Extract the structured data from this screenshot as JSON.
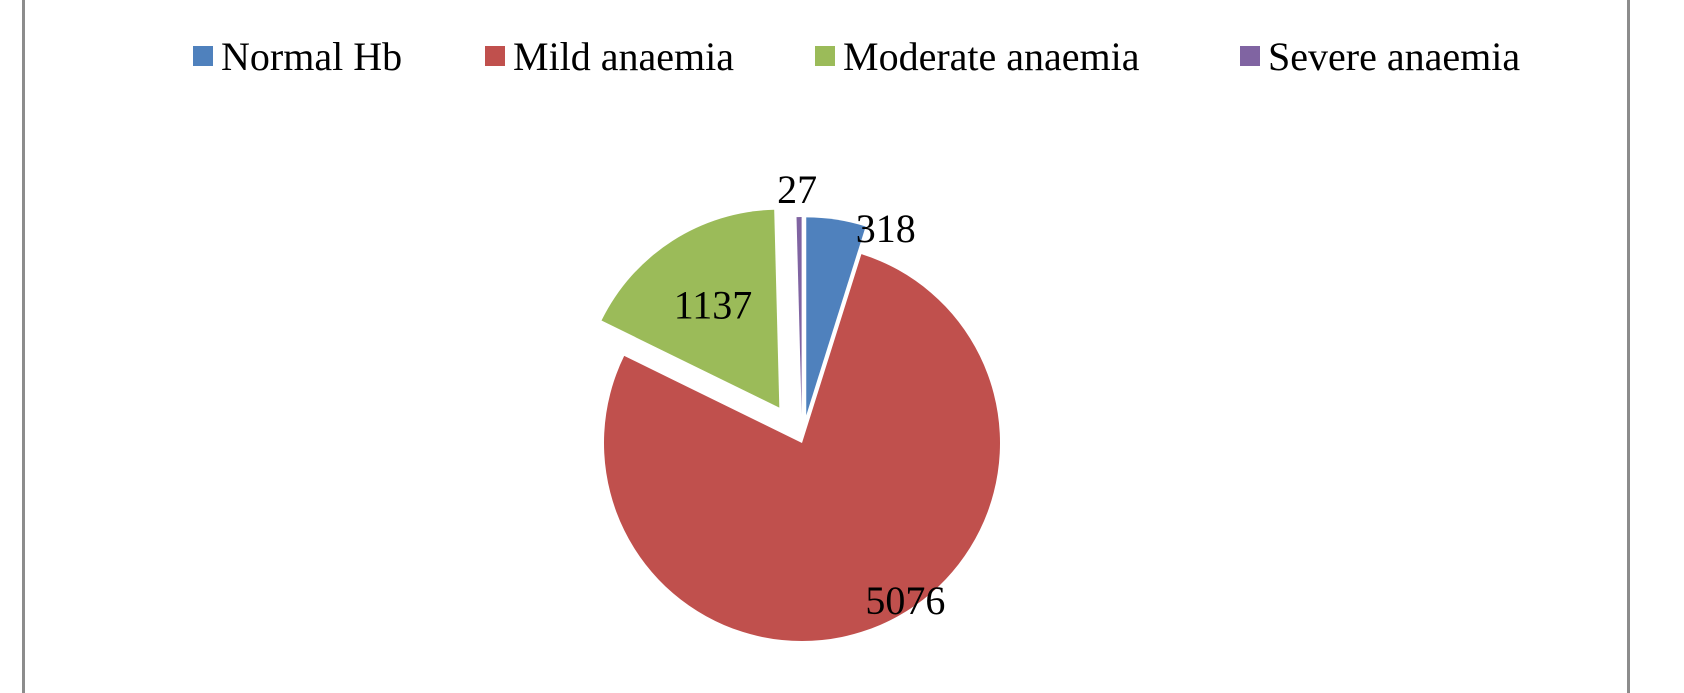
{
  "chart_data": {
    "type": "pie",
    "title": "",
    "legend_position": "top",
    "categories": [
      "Normal Hb",
      "Mild anaemia",
      "Moderate anaemia",
      "Severe anaemia"
    ],
    "values": [
      318,
      5076,
      1137,
      27
    ],
    "data_labels": [
      "318",
      "5076",
      "1137",
      "27"
    ],
    "colors": [
      "#4f81bd",
      "#c0504d",
      "#9bbb59",
      "#8064a2"
    ],
    "exploded": true
  }
}
